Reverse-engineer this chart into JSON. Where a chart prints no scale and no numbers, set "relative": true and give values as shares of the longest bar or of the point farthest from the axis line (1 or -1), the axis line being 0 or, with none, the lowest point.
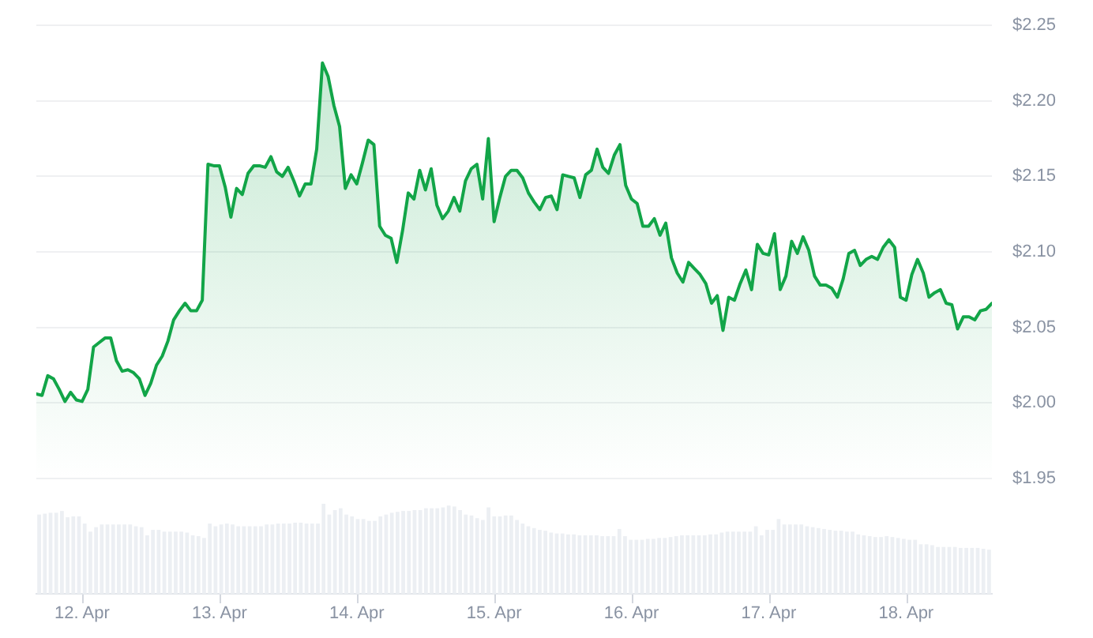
{
  "chart_data": [
    {
      "type": "area",
      "x": [
        "--04-11T16:00",
        "--04-11T17:00",
        "--04-11T18:00",
        "--04-11T19:00",
        "--04-11T20:00",
        "--04-11T21:00",
        "--04-11T22:00",
        "--04-11T23:00",
        "--04-12T00:00",
        "--04-12T01:00",
        "--04-12T02:00",
        "--04-12T03:00",
        "--04-12T04:00",
        "--04-12T05:00",
        "--04-12T06:00",
        "--04-12T07:00",
        "--04-12T08:00",
        "--04-12T09:00",
        "--04-12T10:00",
        "--04-12T11:00",
        "--04-12T12:00",
        "--04-12T13:00",
        "--04-12T14:00",
        "--04-12T15:00",
        "--04-12T16:00",
        "--04-12T17:00",
        "--04-12T18:00",
        "--04-12T19:00",
        "--04-12T20:00",
        "--04-12T21:00",
        "--04-12T22:00",
        "--04-12T23:00",
        "--04-13T00:00",
        "--04-13T01:00",
        "--04-13T02:00",
        "--04-13T03:00",
        "--04-13T04:00",
        "--04-13T05:00",
        "--04-13T06:00",
        "--04-13T07:00",
        "--04-13T08:00",
        "--04-13T09:00",
        "--04-13T10:00",
        "--04-13T11:00",
        "--04-13T12:00",
        "--04-13T13:00",
        "--04-13T14:00",
        "--04-13T15:00",
        "--04-13T16:00",
        "--04-13T17:00",
        "--04-13T18:00",
        "--04-13T19:00",
        "--04-13T20:00",
        "--04-13T21:00",
        "--04-13T22:00",
        "--04-13T23:00",
        "--04-14T00:00",
        "--04-14T01:00",
        "--04-14T02:00",
        "--04-14T03:00",
        "--04-14T04:00",
        "--04-14T05:00",
        "--04-14T06:00",
        "--04-14T07:00",
        "--04-14T08:00",
        "--04-14T09:00",
        "--04-14T10:00",
        "--04-14T11:00",
        "--04-14T12:00",
        "--04-14T13:00",
        "--04-14T14:00",
        "--04-14T15:00",
        "--04-14T16:00",
        "--04-14T17:00",
        "--04-14T18:00",
        "--04-14T19:00",
        "--04-14T20:00",
        "--04-14T21:00",
        "--04-14T22:00",
        "--04-14T23:00",
        "--04-15T00:00",
        "--04-15T01:00",
        "--04-15T02:00",
        "--04-15T03:00",
        "--04-15T04:00",
        "--04-15T05:00",
        "--04-15T06:00",
        "--04-15T07:00",
        "--04-15T08:00",
        "--04-15T09:00",
        "--04-15T10:00",
        "--04-15T11:00",
        "--04-15T12:00",
        "--04-15T13:00",
        "--04-15T14:00",
        "--04-15T15:00",
        "--04-15T16:00",
        "--04-15T17:00",
        "--04-15T18:00",
        "--04-15T19:00",
        "--04-15T20:00",
        "--04-15T21:00",
        "--04-15T22:00",
        "--04-15T23:00",
        "--04-16T00:00",
        "--04-16T01:00",
        "--04-16T02:00",
        "--04-16T03:00",
        "--04-16T04:00",
        "--04-16T05:00",
        "--04-16T06:00",
        "--04-16T07:00",
        "--04-16T08:00",
        "--04-16T09:00",
        "--04-16T10:00",
        "--04-16T11:00",
        "--04-16T12:00",
        "--04-16T13:00",
        "--04-16T14:00",
        "--04-16T15:00",
        "--04-16T16:00",
        "--04-16T17:00",
        "--04-16T18:00",
        "--04-16T19:00",
        "--04-16T20:00",
        "--04-16T21:00",
        "--04-16T22:00",
        "--04-16T23:00",
        "--04-17T00:00",
        "--04-17T01:00",
        "--04-17T02:00",
        "--04-17T03:00",
        "--04-17T04:00",
        "--04-17T05:00",
        "--04-17T06:00",
        "--04-17T07:00",
        "--04-17T08:00",
        "--04-17T09:00",
        "--04-17T10:00",
        "--04-17T11:00",
        "--04-17T12:00",
        "--04-17T13:00",
        "--04-17T14:00",
        "--04-17T15:00",
        "--04-17T16:00",
        "--04-17T17:00",
        "--04-17T18:00",
        "--04-17T19:00",
        "--04-17T20:00",
        "--04-17T21:00",
        "--04-17T22:00",
        "--04-17T23:00",
        "--04-18T00:00",
        "--04-18T01:00",
        "--04-18T02:00",
        "--04-18T03:00",
        "--04-18T04:00",
        "--04-18T05:00",
        "--04-18T06:00",
        "--04-18T07:00",
        "--04-18T08:00",
        "--04-18T09:00",
        "--04-18T10:00",
        "--04-18T11:00",
        "--04-18T12:00",
        "--04-18T13:00",
        "--04-18T14:00",
        "--04-18T15:00"
      ],
      "values": [
        2.006,
        2.005,
        2.018,
        2.016,
        2.009,
        2.001,
        2.007,
        2.002,
        2.001,
        2.009,
        2.037,
        2.04,
        2.043,
        2.043,
        2.028,
        2.021,
        2.022,
        2.02,
        2.016,
        2.005,
        2.013,
        2.025,
        2.031,
        2.041,
        2.055,
        2.061,
        2.066,
        2.061,
        2.061,
        2.068,
        2.158,
        2.157,
        2.157,
        2.143,
        2.123,
        2.142,
        2.138,
        2.152,
        2.157,
        2.157,
        2.156,
        2.163,
        2.153,
        2.15,
        2.156,
        2.147,
        2.137,
        2.145,
        2.145,
        2.168,
        2.225,
        2.216,
        2.197,
        2.183,
        2.142,
        2.151,
        2.145,
        2.159,
        2.174,
        2.171,
        2.117,
        2.111,
        2.109,
        2.093,
        2.114,
        2.139,
        2.135,
        2.154,
        2.141,
        2.155,
        2.131,
        2.122,
        2.127,
        2.136,
        2.127,
        2.147,
        2.155,
        2.158,
        2.135,
        2.175,
        2.12,
        2.136,
        2.15,
        2.154,
        2.154,
        2.149,
        2.139,
        2.133,
        2.128,
        2.136,
        2.137,
        2.128,
        2.151,
        2.15,
        2.149,
        2.136,
        2.151,
        2.154,
        2.168,
        2.156,
        2.152,
        2.164,
        2.171,
        2.144,
        2.135,
        2.132,
        2.117,
        2.117,
        2.122,
        2.111,
        2.119,
        2.096,
        2.086,
        2.08,
        2.093,
        2.089,
        2.085,
        2.079,
        2.066,
        2.071,
        2.048,
        2.07,
        2.068,
        2.079,
        2.088,
        2.075,
        2.105,
        2.099,
        2.098,
        2.112,
        2.075,
        2.084,
        2.107,
        2.099,
        2.11,
        2.101,
        2.084,
        2.078,
        2.078,
        2.076,
        2.07,
        2.082,
        2.099,
        2.101,
        2.091,
        2.095,
        2.097,
        2.095,
        2.103,
        2.108,
        2.103,
        2.07,
        2.068,
        2.085,
        2.095,
        2.086,
        2.07,
        2.073,
        2.075,
        2.066,
        2.065,
        2.049,
        2.057,
        2.057,
        2.055,
        2.061,
        2.062,
        2.066
      ],
      "color": "#12a548",
      "xlim": [
        "--04-11T16:00",
        "--04-18T15:00"
      ],
      "xticks": [
        {
          "value": "--04-12",
          "label": "12. Apr"
        },
        {
          "value": "--04-13",
          "label": "13. Apr"
        },
        {
          "value": "--04-14",
          "label": "14. Apr"
        },
        {
          "value": "--04-15",
          "label": "15. Apr"
        },
        {
          "value": "--04-16",
          "label": "16. Apr"
        },
        {
          "value": "--04-17",
          "label": "17. Apr"
        },
        {
          "value": "--04-18",
          "label": "18. Apr"
        }
      ],
      "ylim": [
        1.95,
        2.25
      ],
      "yticks": [
        {
          "value": 1.95,
          "label": "$1.95"
        },
        {
          "value": 2.0,
          "label": "$2.00"
        },
        {
          "value": 2.05,
          "label": "$2.05"
        },
        {
          "value": 2.1,
          "label": "$2.10"
        },
        {
          "value": 2.15,
          "label": "$2.15"
        },
        {
          "value": 2.2,
          "label": "$2.20"
        },
        {
          "value": 2.25,
          "label": "$2.25"
        }
      ],
      "grid": "y"
    },
    {
      "type": "bar",
      "relative": true,
      "categories": [
        null,
        null,
        null,
        null,
        null,
        null,
        null,
        null,
        null,
        null,
        null,
        null,
        null,
        null,
        null,
        null,
        null,
        null,
        null,
        null,
        null,
        null,
        null,
        null,
        null,
        null,
        null,
        null,
        null,
        null,
        null,
        null,
        null,
        null,
        null,
        null,
        null,
        null,
        null,
        null,
        null,
        null,
        null,
        null,
        null,
        null,
        null,
        null,
        null,
        null,
        null,
        null,
        null,
        null,
        null,
        null,
        null,
        null,
        null,
        null,
        null,
        null,
        null,
        null,
        null,
        null,
        null,
        null,
        null,
        null,
        null,
        null,
        null,
        null,
        null,
        null,
        null,
        null,
        null,
        null,
        null,
        null,
        null,
        null,
        null,
        null,
        null,
        null,
        null,
        null,
        null,
        null,
        null,
        null,
        null,
        null,
        null,
        null,
        null,
        null,
        null,
        null,
        null,
        null,
        null,
        null,
        null,
        null,
        null,
        null,
        null,
        null,
        null,
        null,
        null,
        null,
        null,
        null,
        null,
        null,
        null,
        null,
        null,
        null,
        null,
        null,
        null,
        null,
        null,
        null,
        null,
        null,
        null,
        null,
        null,
        null,
        null,
        null,
        null,
        null,
        null,
        null,
        null,
        null,
        null,
        null,
        null,
        null,
        null,
        null,
        null,
        null,
        null,
        null,
        null,
        null,
        null,
        null,
        null,
        null,
        null,
        null,
        null,
        null,
        null,
        null,
        null,
        null
      ],
      "values": [
        0.88,
        0.89,
        0.9,
        0.9,
        0.92,
        0.85,
        0.86,
        0.86,
        0.78,
        0.69,
        0.74,
        0.77,
        0.77,
        0.77,
        0.77,
        0.77,
        0.77,
        0.75,
        0.74,
        0.65,
        0.71,
        0.71,
        0.69,
        0.69,
        0.69,
        0.69,
        0.68,
        0.65,
        0.64,
        0.62,
        0.78,
        0.75,
        0.77,
        0.78,
        0.77,
        0.75,
        0.75,
        0.75,
        0.75,
        0.75,
        0.77,
        0.77,
        0.78,
        0.78,
        0.78,
        0.79,
        0.79,
        0.78,
        0.78,
        0.78,
        1.0,
        0.88,
        0.93,
        0.95,
        0.88,
        0.86,
        0.83,
        0.83,
        0.81,
        0.81,
        0.86,
        0.88,
        0.9,
        0.91,
        0.92,
        0.92,
        0.93,
        0.93,
        0.95,
        0.95,
        0.95,
        0.96,
        0.98,
        0.97,
        0.93,
        0.88,
        0.87,
        0.84,
        0.82,
        0.96,
        0.86,
        0.86,
        0.87,
        0.87,
        0.82,
        0.78,
        0.75,
        0.73,
        0.71,
        0.7,
        0.68,
        0.67,
        0.67,
        0.66,
        0.66,
        0.65,
        0.65,
        0.65,
        0.65,
        0.64,
        0.64,
        0.64,
        0.72,
        0.64,
        0.6,
        0.6,
        0.6,
        0.61,
        0.61,
        0.62,
        0.62,
        0.63,
        0.64,
        0.65,
        0.65,
        0.65,
        0.65,
        0.65,
        0.66,
        0.66,
        0.68,
        0.69,
        0.69,
        0.69,
        0.69,
        0.69,
        0.75,
        0.65,
        0.71,
        0.71,
        0.83,
        0.77,
        0.77,
        0.77,
        0.77,
        0.75,
        0.74,
        0.73,
        0.72,
        0.71,
        0.7,
        0.7,
        0.69,
        0.69,
        0.66,
        0.65,
        0.64,
        0.63,
        0.63,
        0.64,
        0.63,
        0.62,
        0.61,
        0.6,
        0.6,
        0.55,
        0.55,
        0.54,
        0.52,
        0.52,
        0.52,
        0.52,
        0.51,
        0.51,
        0.51,
        0.51,
        0.5,
        0.49
      ],
      "color": "#eceff3"
    }
  ]
}
